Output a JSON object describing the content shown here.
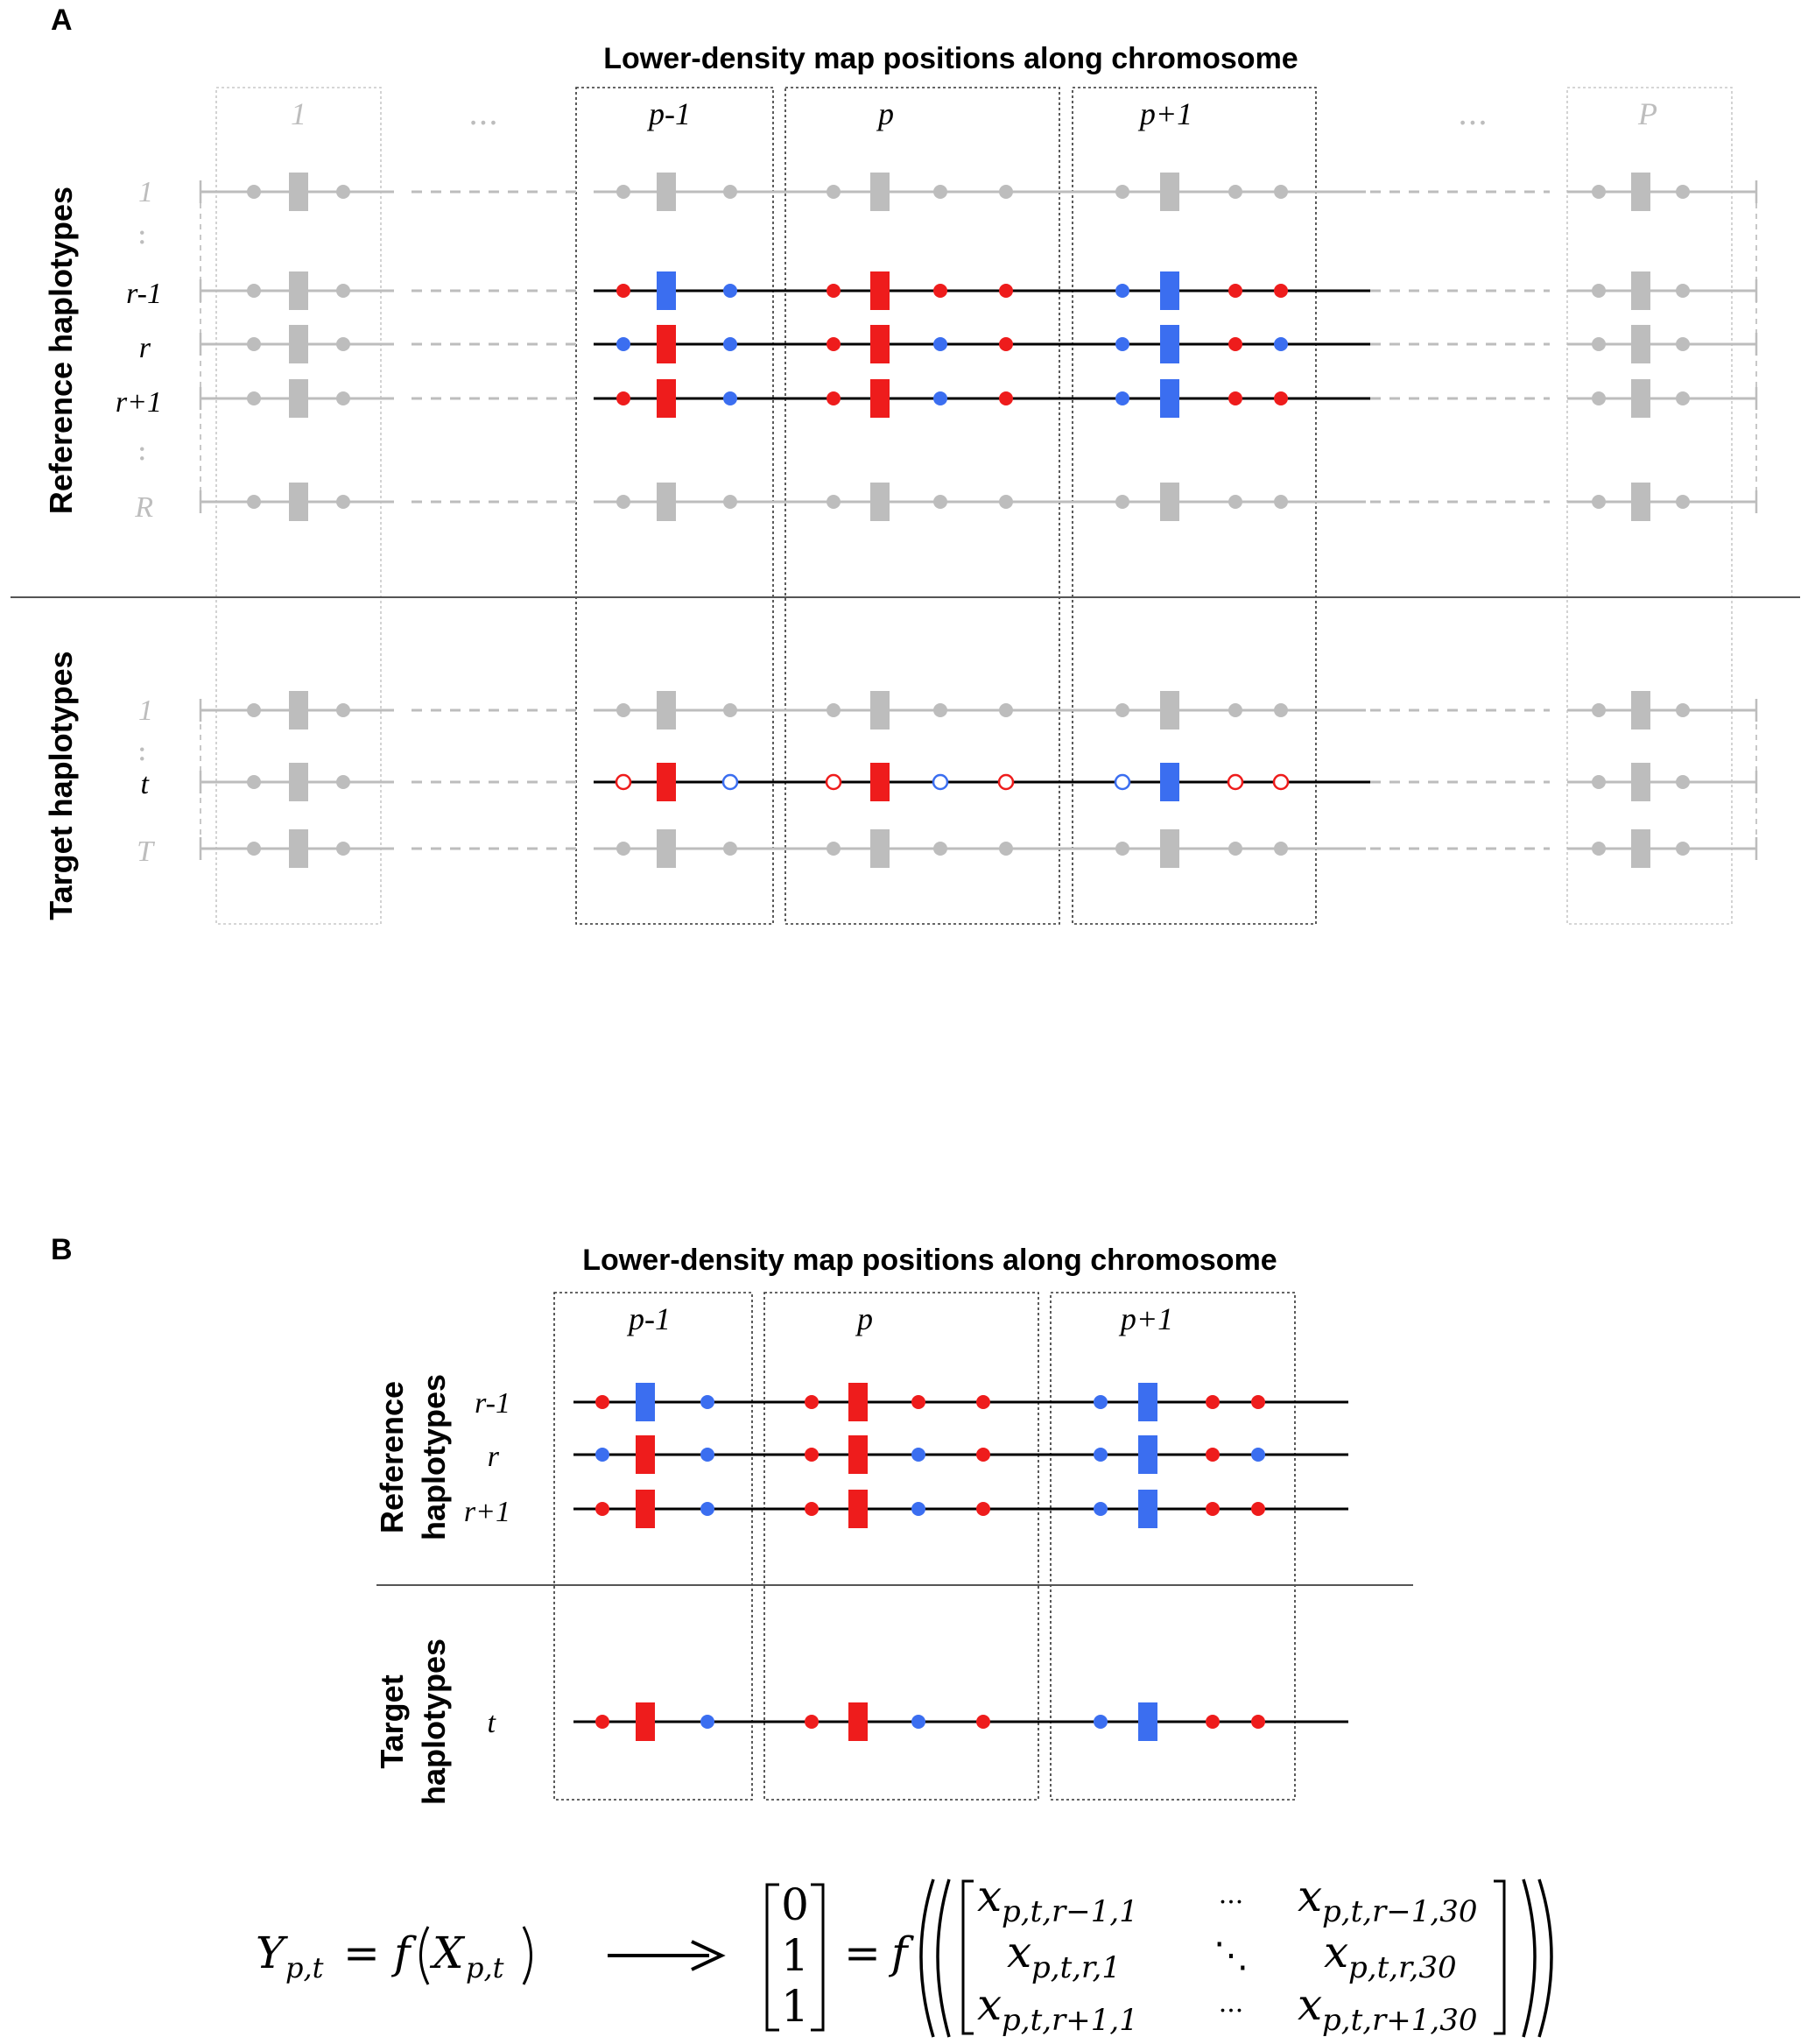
{
  "panelA": {
    "panel_label": "A",
    "title": "Lower-density map positions along chromosome",
    "col_labels": [
      "1",
      "...",
      "p-1",
      "p",
      "p+1",
      "...",
      "P"
    ],
    "ref_axis_label": "Reference haplotypes",
    "tgt_axis_label": "Target haplotypes",
    "ref_row_labels": [
      "1",
      ":",
      "r-1",
      "r",
      "r+1",
      ":",
      "R"
    ],
    "tgt_row_labels": [
      "1",
      ":",
      "t",
      "T"
    ]
  },
  "panelB": {
    "panel_label": "B",
    "title": "Lower-density map positions along chromosome",
    "col_labels": [
      "p-1",
      "p",
      "p+1"
    ],
    "ref_axis_label_1": "Reference",
    "ref_axis_label_2": "haplotypes",
    "tgt_axis_label_1": "Target",
    "tgt_axis_label_2": "haplotypes",
    "ref_row_labels": [
      "r-1",
      "r",
      "r+1"
    ],
    "tgt_row_labels": [
      "t"
    ]
  },
  "formula": {
    "lhs_Y": "Y",
    "lhs_sub": "p,t",
    "equals": "=",
    "f": "f",
    "X": "X",
    "X_sub": "p,t",
    "arrow": "⟶",
    "vector": [
      "0",
      "1",
      "1"
    ],
    "matrix": {
      "r1c1": "p,t,r−1,1",
      "r1c2": "p,t,r−1,30",
      "r2c1": "p,t,r,1",
      "r2c2": "p,t,r,30",
      "r3c1": "p,t,r+1,1",
      "r3c2": "p,t,r+1,30",
      "x": "x",
      "hdots": "···",
      "ddots": "⋱"
    }
  },
  "colors": {
    "red": "#ee1c1c",
    "blue": "#3b6ef0",
    "gray": "#bdbdbd",
    "black": "#000000"
  },
  "allele_patterns": {
    "ref_r_minus_1": "RBBRRRRBBRR",
    "ref_r": "BRBRRBRBBRB",
    "ref_r_plus_1": "RRBRRBRBBRR",
    "target_t": "rRbrRbrbBrr",
    "target_t_B": "RRBRRBRBBRR"
  }
}
